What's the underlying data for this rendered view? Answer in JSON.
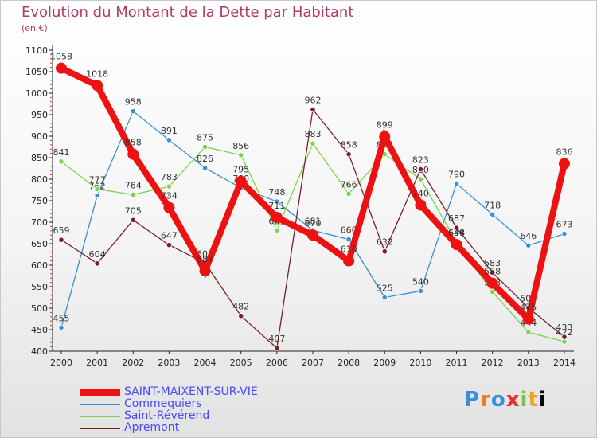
{
  "title": "Evolution du Montant de la Dette par Habitant",
  "subtitle": "(en €)",
  "logo": [
    "P",
    "r",
    "o",
    "x",
    "i",
    "t",
    "i"
  ],
  "chart_data": {
    "type": "line",
    "x": [
      "2000",
      "2001",
      "2002",
      "2003",
      "2004",
      "2005",
      "2006",
      "2007",
      "2008",
      "2009",
      "2010",
      "2011",
      "2012",
      "2013",
      "2014"
    ],
    "ylim": [
      400,
      1100
    ],
    "yticks": [
      400,
      450,
      500,
      550,
      600,
      650,
      700,
      750,
      800,
      850,
      900,
      950,
      1000,
      1050,
      1100
    ],
    "grid": false,
    "legend_position": "bottom-left",
    "series": [
      {
        "name": "Commequiers",
        "color": "#3a8fd6",
        "width": 1.3,
        "values": [
          455,
          762,
          958,
          891,
          826,
          780,
          748,
          681,
          660,
          525,
          540,
          790,
          718,
          646,
          673
        ],
        "labels": [
          "455",
          "762",
          "958",
          "891",
          "826",
          "780",
          "748",
          "681",
          "660",
          "525",
          "540",
          "790",
          "718",
          "646",
          "673"
        ]
      },
      {
        "name": "Saint-Révérend",
        "color": "#7dd34a",
        "width": 1.3,
        "values": [
          841,
          777,
          764,
          783,
          875,
          856,
          681,
          883,
          766,
          858,
          800,
          654,
          538,
          444,
          422
        ],
        "labels": [
          "841",
          "777",
          "764",
          "783",
          "875",
          "856",
          "681",
          "883",
          "766",
          "858",
          "800",
          "654",
          "538",
          "444",
          "422"
        ]
      },
      {
        "name": "Apremont",
        "color": "#7a1e28",
        "width": 1.3,
        "values": [
          659,
          604,
          705,
          647,
          605,
          482,
          407,
          962,
          858,
          632,
          823,
          687,
          583,
          501,
          433
        ],
        "labels": [
          "659",
          "604",
          "705",
          "647",
          "605",
          "482",
          "407",
          "962",
          "858",
          "632",
          "823",
          "687",
          "583",
          "501",
          "433"
        ]
      },
      {
        "name": "SAINT-MAIXENT-SUR-VIE",
        "color": "#ee1111",
        "width": 8,
        "values": [
          1058,
          1018,
          858,
          734,
          587,
          795,
          711,
          670,
          610,
          899,
          740,
          648,
          558,
          475,
          836
        ],
        "labels": [
          "1058",
          "1018",
          "858",
          "734",
          "587",
          "795",
          "711",
          "670",
          "610",
          "899",
          "740",
          "648",
          "558",
          "475",
          "836"
        ]
      }
    ],
    "legend": [
      {
        "name": "SAINT-MAIXENT-SUR-VIE",
        "color": "#ee1111",
        "thick": 8
      },
      {
        "name": "Commequiers",
        "color": "#3a8fd6",
        "thick": 2
      },
      {
        "name": "Saint-Révérend",
        "color": "#7dd34a",
        "thick": 2
      },
      {
        "name": "Apremont",
        "color": "#7a1e28",
        "thick": 2
      }
    ]
  }
}
